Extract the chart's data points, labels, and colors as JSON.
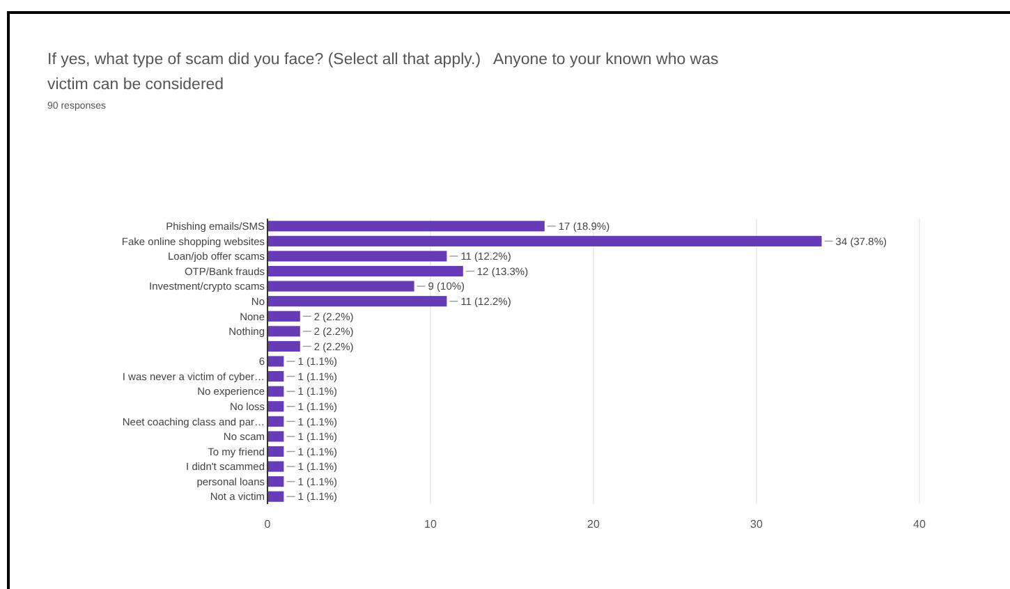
{
  "chart_data": {
    "type": "bar",
    "orientation": "horizontal",
    "title": "If yes, what type of scam did you face? (Select all that apply.)   Anyone to your known who was victim can be considered",
    "subtitle": "90 responses",
    "categories": [
      "Phishing emails/SMS",
      "Fake online shopping websites",
      "Loan/job offer scams",
      "OTP/Bank frauds",
      "Investment/crypto scams",
      "No",
      "None",
      "Nothing",
      null,
      "6",
      "I was never a victim of cyber…",
      "No experience",
      "No loss",
      "Neet coaching class and par…",
      "No scam",
      "To my friend",
      "I didn't scammed",
      "personal loans",
      "Not a victim"
    ],
    "values": [
      17,
      34,
      11,
      12,
      9,
      11,
      2,
      2,
      2,
      1,
      1,
      1,
      1,
      1,
      1,
      1,
      1,
      1,
      1
    ],
    "value_labels": [
      "17 (18.9%)",
      "34 (37.8%)",
      "11 (12.2%)",
      "12 (13.3%)",
      "9 (10%)",
      "11 (12.2%)",
      "2 (2.2%)",
      "2 (2.2%)",
      "2 (2.2%)",
      "1 (1.1%)",
      "1 (1.1%)",
      "1 (1.1%)",
      "1 (1.1%)",
      "1 (1.1%)",
      "1 (1.1%)",
      "1 (1.1%)",
      "1 (1.1%)",
      "1 (1.1%)",
      "1 (1.1%)"
    ],
    "color": "#673ab7",
    "xlim": [
      0,
      40
    ],
    "xticks": [
      0,
      10,
      20,
      30,
      40
    ],
    "grid": "x"
  }
}
